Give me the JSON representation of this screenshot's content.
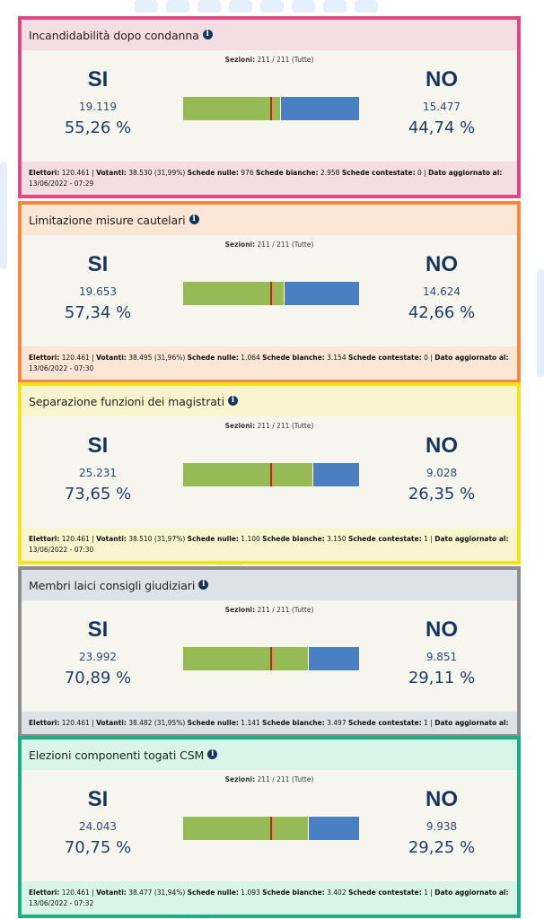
{
  "sezioni_label": "Sezioni:",
  "sezioni_value": "211 / 211 (Tutte)",
  "yes_label": "SI",
  "no_label": "NO",
  "info_icon": "info-circle-icon",
  "footer_labels": {
    "elettori": "Elettori:",
    "votanti": "Votanti:",
    "nulle": "Schede nulle:",
    "bianche": "Schede bianche:",
    "contestate": "Schede contestate:",
    "aggiornato": "Dato aggiornato al:"
  },
  "cards": [
    {
      "title": "Incandidabilità dopo condanna",
      "border": "#dd4a85",
      "head_bg": "#f4dde3",
      "foot_bg": "#f4dde3",
      "yes_count": "19.119",
      "yes_pct": "55,26 %",
      "yes_share": 55.26,
      "no_count": "15.477",
      "no_pct": "44,74 %",
      "elettori": "120.461",
      "votanti": "38.530 (31,99%)",
      "nulle": "976",
      "bianche": "2.958",
      "contestate": "0",
      "updated": "13/06/2022 - 07:29"
    },
    {
      "title": "Limitazione misure cautelari",
      "border": "#f3883e",
      "head_bg": "#fbe6d6",
      "foot_bg": "#fbe6d6",
      "yes_count": "19.653",
      "yes_pct": "57,34 %",
      "yes_share": 57.34,
      "no_count": "14.624",
      "no_pct": "42,66 %",
      "elettori": "120.461",
      "votanti": "38.495 (31,96%)",
      "nulle": "1.064",
      "bianche": "3.154",
      "contestate": "0",
      "updated": "13/06/2022 - 07:30"
    },
    {
      "title": "Separazione funzioni dei magistrati",
      "border": "#f4e21c",
      "head_bg": "#fbf5cf",
      "foot_bg": "#fbf5cf",
      "yes_count": "25.231",
      "yes_pct": "73,65 %",
      "yes_share": 73.65,
      "no_count": "9.028",
      "no_pct": "26,35 %",
      "elettori": "120.461",
      "votanti": "38.510 (31,97%)",
      "nulle": "1.100",
      "bianche": "3.150",
      "contestate": "1",
      "updated": "13/06/2022 - 07:30"
    },
    {
      "title": "Membri laici consigli giudiziari",
      "border": "#8d8d8d",
      "head_bg": "#dde2e6",
      "foot_bg": "#dde2e6",
      "yes_count": "23.992",
      "yes_pct": "70,89 %",
      "yes_share": 70.89,
      "no_count": "9.851",
      "no_pct": "29,11 %",
      "elettori": "120.461",
      "votanti": "38.482 (31,95%)",
      "nulle": "1.141",
      "bianche": "3.497",
      "contestate": "1",
      "updated": ""
    },
    {
      "title": "Elezioni componenti togati CSM",
      "border": "#1fae84",
      "head_bg": "#d9f5ea",
      "foot_bg": "#d9f5ea",
      "yes_count": "24.043",
      "yes_pct": "70,75 %",
      "yes_share": 70.75,
      "no_count": "9.938",
      "no_pct": "29,25 %",
      "elettori": "120.461",
      "votanti": "38.477 (31,94%)",
      "nulle": "1.093",
      "bianche": "3.402",
      "contestate": "1",
      "updated": "13/06/2022 - 07:32"
    }
  ]
}
